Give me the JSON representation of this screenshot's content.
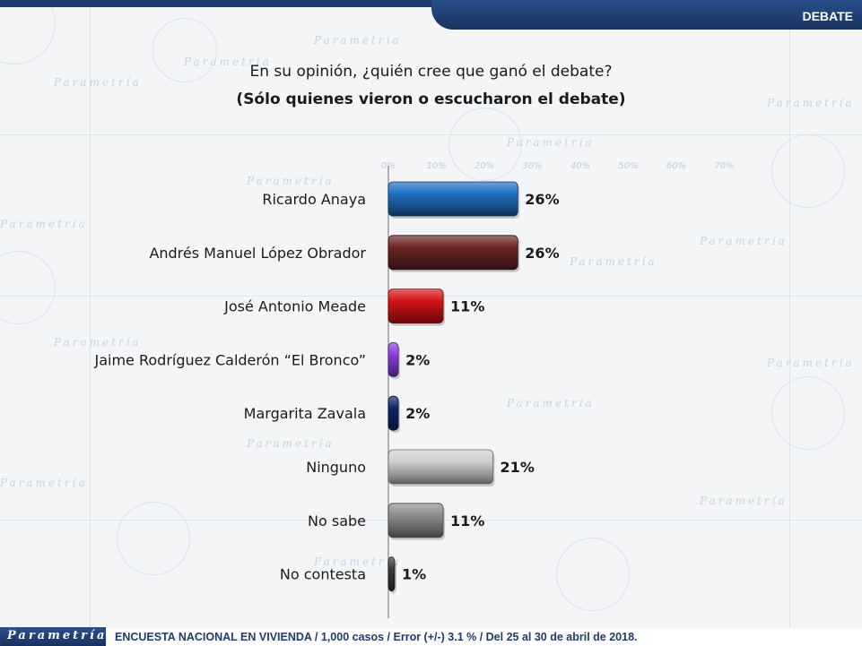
{
  "header": {
    "section_tag": "DEBATE"
  },
  "question": {
    "text": "En su opinión, ¿quién cree que ganó el debate?",
    "subtext": "(Sólo quienes vieron o escucharon el debate)"
  },
  "footer": {
    "brand": "Parametría",
    "note": "ENCUESTA NACIONAL EN VIVIENDA / 1,000 casos / Error (+/-) 3.1 % / Del 25 al 30 de abril de 2018."
  },
  "watermark": {
    "brand": "Parametría"
  },
  "chart_data": {
    "type": "bar",
    "orientation": "horizontal",
    "categories": [
      "Ricardo Anaya",
      "Andrés Manuel López Obrador",
      "José Antonio Meade",
      "Jaime Rodríguez Calderón “El Bronco”",
      "Margarita Zavala",
      "Ninguno",
      "No sabe",
      "No contesta"
    ],
    "values": [
      26,
      26,
      11,
      2,
      2,
      21,
      11,
      1
    ],
    "value_labels": [
      "26%",
      "26%",
      "11%",
      "2%",
      "2%",
      "21%",
      "11%",
      "1%"
    ],
    "colors": [
      "#1e6fc0",
      "#6b2424",
      "#d41414",
      "#8a3ddb",
      "#10256a",
      "#cfcfcf",
      "#8c8c8c",
      "#3a3a3a"
    ],
    "xlim": [
      0,
      70
    ],
    "x_ticks": [
      "0%",
      "10%",
      "20%",
      "30%",
      "40%",
      "50%",
      "60%",
      "70%"
    ],
    "grid": false,
    "legend": "none"
  }
}
